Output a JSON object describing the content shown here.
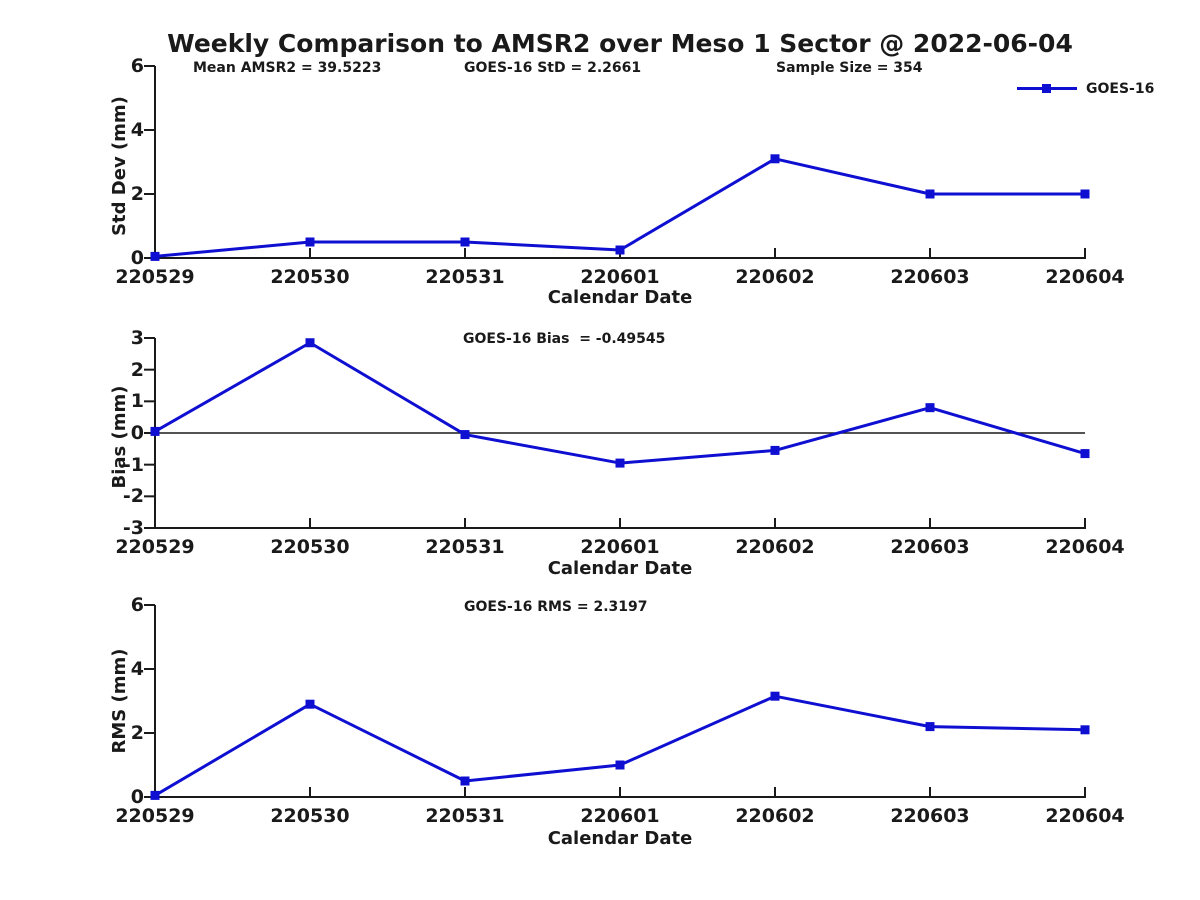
{
  "title": "Weekly Comparison to AMSR2 over Meso 1 Sector @ 2022-06-04",
  "legend": {
    "label": "GOES-16",
    "position": "top-right"
  },
  "colors": {
    "line": "#0f0fd2",
    "axis": "#1a1a1a",
    "zero_line": "#1a1a1a",
    "text": "#1a1a1a",
    "background": "#ffffff"
  },
  "chart_data": [
    {
      "type": "line",
      "ylabel": "Std Dev (mm)",
      "xlabel": "Calendar Date",
      "categories": [
        "220529",
        "220530",
        "220531",
        "220601",
        "220602",
        "220603",
        "220604"
      ],
      "series": [
        {
          "name": "GOES-16",
          "values": [
            0.05,
            0.5,
            0.5,
            0.25,
            3.1,
            2.0,
            2.0
          ]
        }
      ],
      "ylim": [
        0,
        6
      ],
      "yticks": [
        0,
        2,
        4,
        6
      ],
      "grid": false,
      "zero_line": false,
      "marker": "square",
      "annotations": [
        {
          "text": "Mean AMSR2 = 39.5223"
        },
        {
          "text": "GOES-16 StD = 2.2661"
        },
        {
          "text": "Sample Size = 354"
        }
      ]
    },
    {
      "type": "line",
      "ylabel": "Bias (mm)",
      "xlabel": "Calendar Date",
      "categories": [
        "220529",
        "220530",
        "220531",
        "220601",
        "220602",
        "220603",
        "220604"
      ],
      "series": [
        {
          "name": "GOES-16",
          "values": [
            0.05,
            2.85,
            -0.05,
            -0.95,
            -0.55,
            0.8,
            -0.65
          ]
        }
      ],
      "ylim": [
        -3,
        3
      ],
      "yticks": [
        -3,
        -2,
        -1,
        0,
        1,
        2,
        3
      ],
      "grid": false,
      "zero_line": true,
      "marker": "square",
      "annotations": [
        {
          "text": "GOES-16 Bias  = -0.49545"
        }
      ]
    },
    {
      "type": "line",
      "ylabel": "RMS (mm)",
      "xlabel": "Calendar Date",
      "categories": [
        "220529",
        "220530",
        "220531",
        "220601",
        "220602",
        "220603",
        "220604"
      ],
      "series": [
        {
          "name": "GOES-16",
          "values": [
            0.05,
            2.9,
            0.5,
            1.0,
            3.15,
            2.2,
            2.1
          ]
        }
      ],
      "ylim": [
        0,
        6
      ],
      "yticks": [
        0,
        2,
        4,
        6
      ],
      "grid": false,
      "zero_line": false,
      "marker": "square",
      "annotations": [
        {
          "text": "GOES-16 RMS = 2.3197"
        }
      ]
    }
  ]
}
